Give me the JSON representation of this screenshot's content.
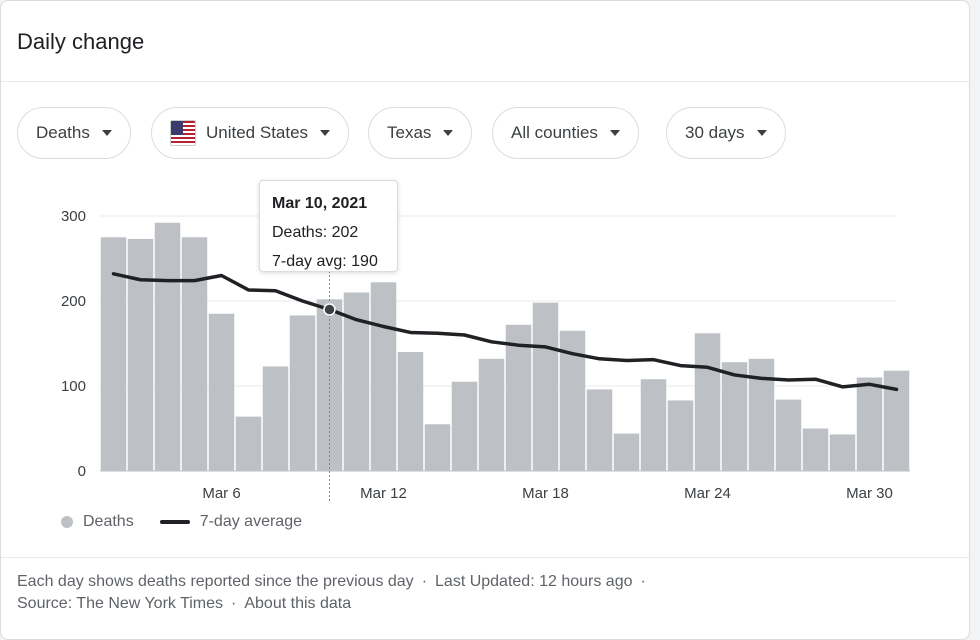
{
  "card": {
    "title": "Daily change"
  },
  "filters": [
    {
      "label": "Deaths"
    },
    {
      "label": "United States",
      "icon": "us-flag-icon"
    },
    {
      "label": "Texas"
    },
    {
      "label": "All counties"
    },
    {
      "label": "30 days"
    }
  ],
  "tooltip": {
    "date": "Mar 10, 2021",
    "deaths_text": "Deaths: 202",
    "avg_text": "7-day avg: 190"
  },
  "legend": {
    "bars": "Deaths",
    "line": "7-day average"
  },
  "footer": {
    "note": "Each day shows deaths reported since the previous day",
    "updated": "Last Updated: 12 hours ago",
    "source": "Source:  The New York Times",
    "about": "About this data",
    "separator": "·"
  },
  "colors": {
    "bar": "#bdc1c6",
    "line": "#202124",
    "grid": "#e8eaed",
    "text": "#5f6368"
  },
  "chart_data": {
    "type": "bar",
    "title": "",
    "ylim": [
      0,
      300
    ],
    "yticks": [
      0,
      100,
      200,
      300
    ],
    "x_tick_labels": [
      {
        "index": 4,
        "label": "Mar 6"
      },
      {
        "index": 10,
        "label": "Mar 12"
      },
      {
        "index": 16,
        "label": "Mar 18"
      },
      {
        "index": 22,
        "label": "Mar 24"
      },
      {
        "index": 28,
        "label": "Mar 30"
      }
    ],
    "categories": [
      "Mar 2",
      "Mar 3",
      "Mar 4",
      "Mar 5",
      "Mar 6",
      "Mar 7",
      "Mar 8",
      "Mar 9",
      "Mar 10",
      "Mar 11",
      "Mar 12",
      "Mar 13",
      "Mar 14",
      "Mar 15",
      "Mar 16",
      "Mar 17",
      "Mar 18",
      "Mar 19",
      "Mar 20",
      "Mar 21",
      "Mar 22",
      "Mar 23",
      "Mar 24",
      "Mar 25",
      "Mar 26",
      "Mar 27",
      "Mar 28",
      "Mar 29",
      "Mar 30",
      "Mar 31"
    ],
    "series": [
      {
        "name": "Deaths",
        "type": "bar",
        "values": [
          275,
          273,
          292,
          275,
          185,
          64,
          123,
          183,
          202,
          210,
          222,
          140,
          55,
          105,
          132,
          172,
          198,
          165,
          96,
          44,
          108,
          83,
          162,
          128,
          132,
          84,
          50,
          43,
          110,
          118
        ]
      },
      {
        "name": "7-day average",
        "type": "line",
        "values": [
          232,
          225,
          224,
          224,
          230,
          213,
          212,
          200,
          190,
          178,
          170,
          163,
          162,
          160,
          152,
          148,
          146,
          138,
          132,
          130,
          131,
          124,
          122,
          113,
          109,
          107,
          108,
          99,
          102,
          96
        ]
      }
    ],
    "highlight_index": 8,
    "grid": true,
    "legend_position": "bottom-left"
  }
}
